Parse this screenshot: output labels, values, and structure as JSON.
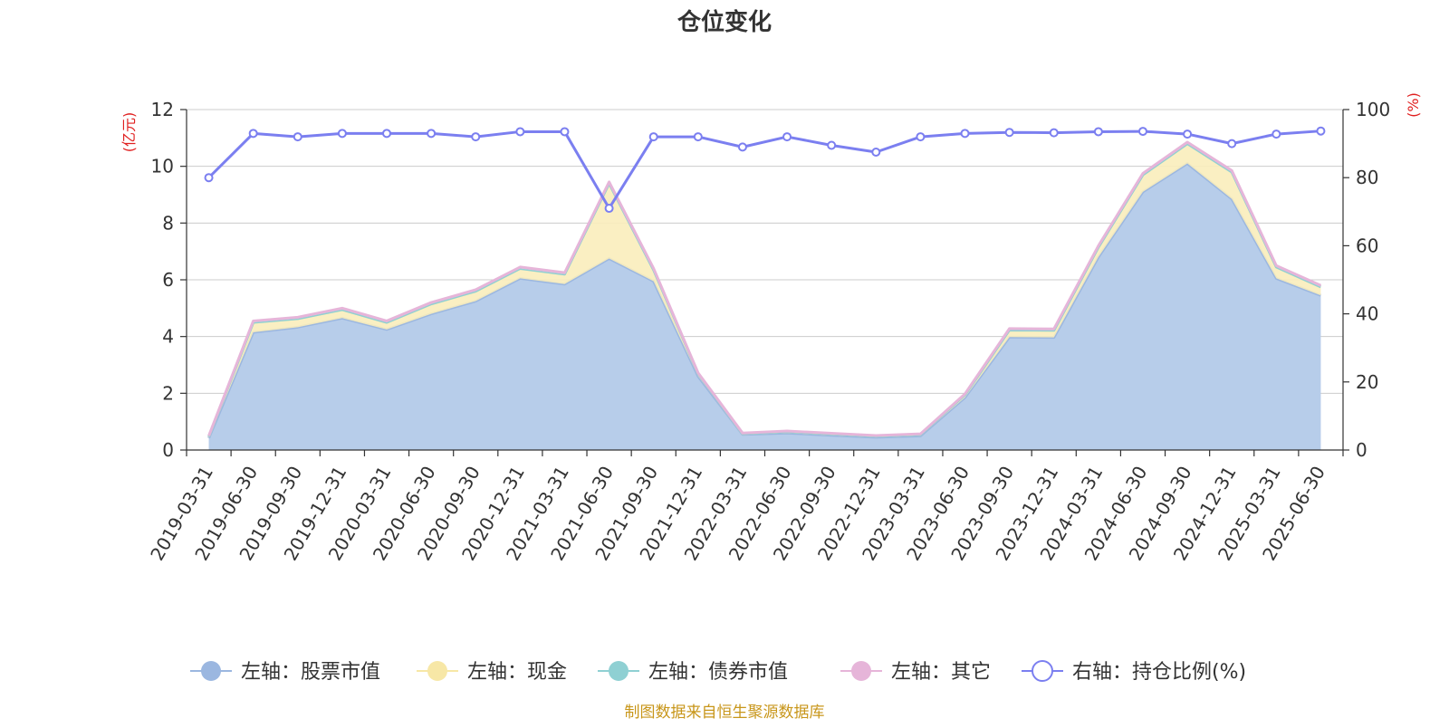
{
  "chart_data": {
    "type": "area",
    "title": "仓位变化",
    "left_axis_unit": "(亿元)",
    "right_axis_unit": "(%)",
    "ylim_left": [
      0,
      12
    ],
    "yticks_left": [
      0,
      2,
      4,
      6,
      8,
      10,
      12
    ],
    "ylim_right": [
      0,
      100
    ],
    "yticks_right": [
      0,
      20,
      40,
      60,
      80,
      100
    ],
    "grid": true,
    "legend_position": "bottom",
    "categories": [
      "2019-03-31",
      "2019-06-30",
      "2019-09-30",
      "2019-12-31",
      "2020-03-31",
      "2020-06-30",
      "2020-09-30",
      "2020-12-31",
      "2021-03-31",
      "2021-06-30",
      "2021-09-30",
      "2021-12-31",
      "2022-03-31",
      "2022-06-30",
      "2022-09-30",
      "2022-12-31",
      "2023-03-31",
      "2023-06-30",
      "2023-09-30",
      "2023-12-31",
      "2024-03-31",
      "2024-06-30",
      "2024-09-30",
      "2024-12-31",
      "2025-03-31",
      "2025-06-30"
    ],
    "series": [
      {
        "name": "左轴：股票市值",
        "axis": "left",
        "kind": "stacked-area",
        "color": "#9bb7e0",
        "fill": "#b7cdea",
        "values": [
          0.42,
          4.15,
          4.33,
          4.65,
          4.25,
          4.8,
          5.25,
          6.05,
          5.85,
          6.75,
          5.95,
          2.6,
          0.55,
          0.6,
          0.52,
          0.45,
          0.5,
          1.85,
          3.98,
          3.97,
          6.8,
          9.1,
          10.1,
          8.85,
          6.05,
          5.45
        ]
      },
      {
        "name": "左轴：现金",
        "axis": "left",
        "kind": "stacked-area",
        "color": "#f7e7a6",
        "fill": "#faedbb",
        "values": [
          0.06,
          0.35,
          0.3,
          0.3,
          0.25,
          0.35,
          0.35,
          0.35,
          0.35,
          2.65,
          0.4,
          0.1,
          0.03,
          0.05,
          0.05,
          0.04,
          0.05,
          0.1,
          0.25,
          0.25,
          0.35,
          0.6,
          0.7,
          0.95,
          0.4,
          0.3
        ]
      },
      {
        "name": "左轴：债券市值",
        "axis": "left",
        "kind": "stacked-area",
        "color": "#8fd0d3",
        "fill": "#b5e0e2",
        "values": [
          0,
          0,
          0,
          0,
          0,
          0,
          0,
          0,
          0,
          0,
          0,
          0,
          0,
          0,
          0,
          0,
          0,
          0,
          0,
          0,
          0,
          0,
          0,
          0,
          0,
          0
        ]
      },
      {
        "name": "左轴：其它",
        "axis": "left",
        "kind": "stacked-area",
        "color": "#e6b5d9",
        "fill": "#efcfe5",
        "values": [
          0.02,
          0.05,
          0.05,
          0.05,
          0.05,
          0.05,
          0.05,
          0.05,
          0.05,
          0.05,
          0.05,
          0.02,
          0.02,
          0.02,
          0.02,
          0.02,
          0.02,
          0.03,
          0.05,
          0.05,
          0.05,
          0.05,
          0.05,
          0.05,
          0.05,
          0.05
        ]
      },
      {
        "name": "右轴：持仓比例(%)",
        "axis": "right",
        "kind": "line",
        "color": "#7b7ff0",
        "values": [
          80,
          93,
          92,
          93,
          93,
          93,
          92,
          93.5,
          93.5,
          71,
          92,
          92,
          89,
          92,
          89.5,
          87.5,
          92,
          93,
          93.3,
          93.2,
          93.5,
          93.6,
          92.8,
          90,
          92.8,
          93.7
        ]
      }
    ]
  },
  "footer": {
    "source": "制图数据来自恒生聚源数据库"
  }
}
